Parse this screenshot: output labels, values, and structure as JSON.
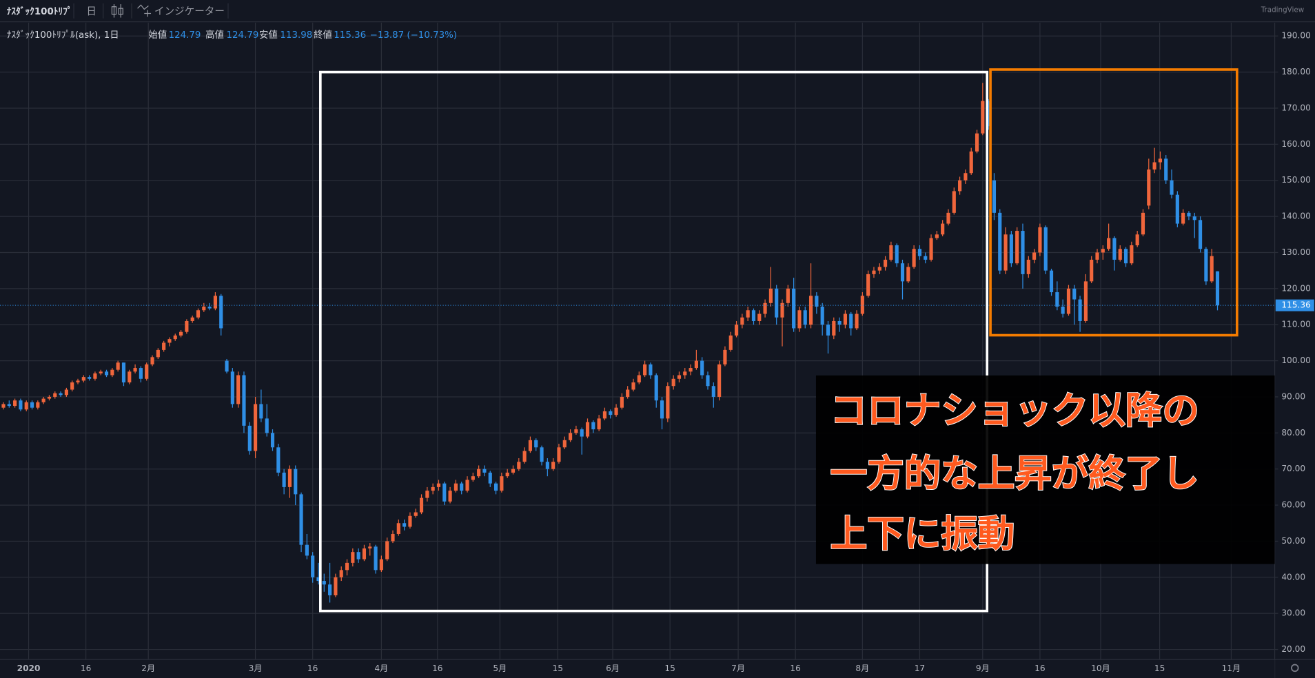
{
  "toolbar": {
    "symbol": "ﾅｽﾀﾞｯｸ100ﾄﾘﾌﾟ",
    "interval": "日",
    "indicators": "インジケーター",
    "brand": "TradingView"
  },
  "chart_data": {
    "type": "candlestick",
    "legend_title": "ﾅｽﾀﾞｯｸ100ﾄﾘﾌﾟﾙ(ask), 1日",
    "legend_labels": [
      "始値",
      "高値",
      "安値",
      "終値"
    ],
    "change_text": "−13.87 (−10.73%)",
    "up_color": "#f0663c",
    "down_color": "#2f8fe6",
    "grid": true,
    "last_price_line": true,
    "xlim": [
      -0.6,
      222
    ],
    "xticks": [
      {
        "value": 4.4,
        "label": "2020"
      },
      {
        "value": 14.4,
        "label": "16"
      },
      {
        "value": 25.3,
        "label": "2月"
      },
      {
        "value": 44,
        "label": "3月"
      },
      {
        "value": 54,
        "label": "16"
      },
      {
        "value": 66,
        "label": "4月"
      },
      {
        "value": 75.8,
        "label": "16"
      },
      {
        "value": 86.7,
        "label": "5月"
      },
      {
        "value": 96.8,
        "label": "15"
      },
      {
        "value": 106.4,
        "label": "6月"
      },
      {
        "value": 116.4,
        "label": "15"
      },
      {
        "value": 128.3,
        "label": "7月"
      },
      {
        "value": 138.3,
        "label": "16"
      },
      {
        "value": 150,
        "label": "8月"
      },
      {
        "value": 160,
        "label": "17"
      },
      {
        "value": 171,
        "label": "9月"
      },
      {
        "value": 181,
        "label": "16"
      },
      {
        "value": 191.6,
        "label": "10月"
      },
      {
        "value": 201.9,
        "label": "15"
      },
      {
        "value": 214.4,
        "label": "11月"
      }
    ],
    "ylim": [
      17.2,
      193.7
    ],
    "yticks": [
      {
        "value": 20,
        "label": "20.00"
      },
      {
        "value": 30,
        "label": "30.00"
      },
      {
        "value": 40,
        "label": "40.00"
      },
      {
        "value": 50,
        "label": "50.00"
      },
      {
        "value": 60,
        "label": "60.00"
      },
      {
        "value": 70,
        "label": "70.00"
      },
      {
        "value": 80,
        "label": "80.00"
      },
      {
        "value": 90,
        "label": "90.00"
      },
      {
        "value": 100,
        "label": "100.00"
      },
      {
        "value": 110,
        "label": "110.00"
      },
      {
        "value": 120,
        "label": "120.00"
      },
      {
        "value": 130,
        "label": "130.00"
      },
      {
        "value": 140,
        "label": "140.00"
      },
      {
        "value": 150,
        "label": "150.00"
      },
      {
        "value": 160,
        "label": "160.00"
      },
      {
        "value": 170,
        "label": "170.00"
      },
      {
        "value": 180,
        "label": "180.00"
      },
      {
        "value": 190,
        "label": "190.00"
      }
    ],
    "ohlc": [
      [
        87,
        88.5,
        86.5,
        88
      ],
      [
        88,
        89,
        87,
        87.5
      ],
      [
        87.5,
        89.5,
        87,
        89
      ],
      [
        89,
        89.5,
        86,
        86.5
      ],
      [
        86.5,
        89,
        86,
        88.5
      ],
      [
        88.5,
        89,
        86.5,
        87
      ],
      [
        87,
        89,
        86.5,
        88.5
      ],
      [
        88.5,
        90,
        88,
        89.5
      ],
      [
        89.5,
        90.5,
        89,
        90
      ],
      [
        90,
        91.5,
        89.5,
        91
      ],
      [
        91,
        91.5,
        90,
        90.5
      ],
      [
        90.5,
        92.5,
        90,
        92
      ],
      [
        92,
        94.5,
        91.5,
        94
      ],
      [
        94,
        95,
        93.5,
        94.5
      ],
      [
        94.5,
        96,
        94,
        95.5
      ],
      [
        95.5,
        96,
        94.5,
        95
      ],
      [
        95,
        97,
        94.5,
        96.5
      ],
      [
        96.5,
        97.5,
        96,
        97
      ],
      [
        97,
        97.5,
        95.5,
        96
      ],
      [
        96,
        98,
        95.5,
        97.5
      ],
      [
        97.5,
        100,
        97,
        99.5
      ],
      [
        99.5,
        99.5,
        93,
        94
      ],
      [
        94,
        97.5,
        93.5,
        97
      ],
      [
        97,
        99,
        96.5,
        98
      ],
      [
        98,
        98.5,
        94,
        95
      ],
      [
        95,
        99.5,
        94.5,
        99
      ],
      [
        99,
        101.5,
        98.5,
        101
      ],
      [
        101,
        103.5,
        100.5,
        103
      ],
      [
        103,
        105.5,
        102.5,
        105
      ],
      [
        105,
        106.5,
        104,
        106
      ],
      [
        106,
        107.5,
        105.5,
        107
      ],
      [
        107,
        108.5,
        106.5,
        108
      ],
      [
        108,
        111.5,
        107.5,
        111
      ],
      [
        111,
        112.5,
        110.5,
        112
      ],
      [
        112,
        114.5,
        111.5,
        114
      ],
      [
        114,
        116,
        113.5,
        115
      ],
      [
        115,
        116,
        114,
        114.5
      ],
      [
        114.5,
        119,
        114,
        118
      ],
      [
        118,
        118.5,
        107,
        109
      ],
      [
        100,
        100.5,
        96.5,
        97
      ],
      [
        97,
        98,
        87,
        88
      ],
      [
        88,
        97,
        87,
        96
      ],
      [
        96,
        97,
        80,
        82
      ],
      [
        82,
        83,
        74,
        75
      ],
      [
        75,
        90,
        73,
        88
      ],
      [
        88,
        92,
        83,
        84
      ],
      [
        84,
        88,
        79,
        80
      ],
      [
        80,
        81,
        75,
        76
      ],
      [
        76,
        77,
        68,
        69
      ],
      [
        69,
        70,
        63,
        65
      ],
      [
        65,
        71,
        62,
        70
      ],
      [
        70,
        71,
        60,
        63
      ],
      [
        63,
        63.5,
        47,
        49
      ],
      [
        49,
        52,
        45,
        46
      ],
      [
        46,
        47,
        38.5,
        40
      ],
      [
        40,
        44,
        38,
        39
      ],
      [
        39,
        41,
        36,
        38
      ],
      [
        38,
        44,
        33,
        35
      ],
      [
        35,
        41,
        34.5,
        40
      ],
      [
        40,
        43,
        39,
        42
      ],
      [
        42,
        45,
        40.5,
        44
      ],
      [
        44,
        48,
        43,
        47
      ],
      [
        47,
        48,
        44,
        45
      ],
      [
        45,
        49,
        44.5,
        48
      ],
      [
        48,
        49.5,
        46,
        48.5
      ],
      [
        48.5,
        49,
        41,
        42
      ],
      [
        42,
        46,
        41.5,
        45
      ],
      [
        45,
        51,
        44.5,
        50
      ],
      [
        50,
        53,
        49.5,
        52
      ],
      [
        52,
        56,
        51.5,
        55
      ],
      [
        55,
        56,
        53,
        54
      ],
      [
        54,
        58,
        53.5,
        57
      ],
      [
        57,
        59,
        56.5,
        58
      ],
      [
        58,
        63,
        57.5,
        62
      ],
      [
        62,
        65,
        61,
        64
      ],
      [
        64,
        66,
        63,
        65
      ],
      [
        65,
        67,
        64,
        66
      ],
      [
        66,
        66.5,
        60,
        61
      ],
      [
        61,
        65,
        60.5,
        64
      ],
      [
        64,
        67,
        63.5,
        66
      ],
      [
        66,
        66.5,
        63,
        64
      ],
      [
        64,
        68,
        63.5,
        67
      ],
      [
        67,
        69,
        66.5,
        68
      ],
      [
        68,
        71,
        67.5,
        70
      ],
      [
        70,
        71,
        68,
        69
      ],
      [
        69,
        69.5,
        65,
        66
      ],
      [
        66,
        66.5,
        63,
        64
      ],
      [
        64,
        69,
        63.5,
        68
      ],
      [
        68,
        70,
        67.5,
        69
      ],
      [
        69,
        71,
        68.5,
        70
      ],
      [
        70,
        73,
        69.5,
        72
      ],
      [
        72,
        76,
        71.5,
        75
      ],
      [
        75,
        79,
        74.5,
        78
      ],
      [
        78,
        78.5,
        75,
        76
      ],
      [
        76,
        76.5,
        71,
        72
      ],
      [
        72,
        73,
        68,
        70
      ],
      [
        70,
        73,
        69.5,
        72
      ],
      [
        72,
        77,
        71.5,
        76
      ],
      [
        76,
        79,
        75.5,
        78
      ],
      [
        78,
        81,
        77.5,
        80
      ],
      [
        80,
        82,
        79.5,
        81
      ],
      [
        81,
        81.5,
        74,
        79
      ],
      [
        79,
        84,
        78.5,
        83
      ],
      [
        83,
        83.5,
        80,
        81
      ],
      [
        81,
        85,
        80.5,
        84
      ],
      [
        84,
        87,
        83.5,
        86
      ],
      [
        86,
        86.5,
        84,
        85
      ],
      [
        85,
        88,
        84.5,
        87
      ],
      [
        87,
        91,
        86.5,
        90
      ],
      [
        90,
        93,
        89.5,
        92
      ],
      [
        92,
        95,
        91.5,
        94
      ],
      [
        94,
        97,
        93.5,
        96
      ],
      [
        96,
        100,
        95.5,
        99
      ],
      [
        99,
        99.5,
        95,
        96
      ],
      [
        96,
        96.5,
        87,
        89
      ],
      [
        89,
        90,
        81,
        84
      ],
      [
        84,
        94,
        83,
        93
      ],
      [
        93,
        96,
        92,
        95
      ],
      [
        95,
        97,
        94,
        96
      ],
      [
        96,
        98,
        95,
        97
      ],
      [
        97,
        99,
        96,
        98
      ],
      [
        98,
        103,
        97.5,
        100
      ],
      [
        100,
        101,
        95,
        96
      ],
      [
        96,
        97,
        92,
        93
      ],
      [
        93,
        94,
        87,
        90
      ],
      [
        90,
        100,
        89,
        99
      ],
      [
        99,
        104,
        98.5,
        103
      ],
      [
        103,
        108,
        102.5,
        107
      ],
      [
        107,
        111,
        106.5,
        110
      ],
      [
        110,
        113,
        109,
        112
      ],
      [
        112,
        115,
        111,
        114
      ],
      [
        114,
        114.5,
        110,
        111
      ],
      [
        111,
        114,
        110,
        113
      ],
      [
        113,
        117,
        112,
        116
      ],
      [
        116,
        126,
        115,
        120
      ],
      [
        120,
        121,
        110,
        112
      ],
      [
        112,
        117,
        104,
        116
      ],
      [
        116,
        121,
        115,
        120
      ],
      [
        120,
        123,
        108,
        109
      ],
      [
        109,
        115,
        108,
        114
      ],
      [
        114,
        115,
        109,
        110
      ],
      [
        110,
        127,
        109,
        118
      ],
      [
        118,
        119,
        113,
        115
      ],
      [
        115,
        116,
        107,
        110
      ],
      [
        110,
        111,
        102,
        107
      ],
      [
        107,
        112,
        106,
        111
      ],
      [
        111,
        112,
        108,
        110
      ],
      [
        110,
        114,
        109,
        113
      ],
      [
        113,
        113.5,
        107,
        109
      ],
      [
        109,
        114,
        108.5,
        113
      ],
      [
        113,
        119,
        112.5,
        118
      ],
      [
        118,
        125,
        117.5,
        124
      ],
      [
        124,
        126,
        123,
        125
      ],
      [
        125,
        127,
        124,
        126
      ],
      [
        126,
        129,
        125,
        128
      ],
      [
        128,
        133,
        127.5,
        132
      ],
      [
        132,
        132.5,
        126,
        127
      ],
      [
        127,
        128,
        117,
        122
      ],
      [
        122,
        127,
        121.5,
        126
      ],
      [
        126,
        132,
        125.5,
        131
      ],
      [
        131,
        132,
        128,
        129
      ],
      [
        129,
        130,
        127,
        128
      ],
      [
        128,
        135,
        127.5,
        134
      ],
      [
        134,
        136,
        133.5,
        135
      ],
      [
        135,
        139,
        134.5,
        138
      ],
      [
        138,
        142,
        137.5,
        141
      ],
      [
        141,
        148,
        140.5,
        147
      ],
      [
        147,
        151,
        146,
        150
      ],
      [
        150,
        153,
        149,
        152
      ],
      [
        152,
        159,
        151.5,
        158
      ],
      [
        158,
        164,
        157.5,
        163
      ],
      [
        163,
        177,
        162.5,
        172
      ],
      [
        172,
        172.5,
        164,
        165
      ],
      [
        150,
        152,
        139,
        141
      ],
      [
        141,
        142,
        124,
        125
      ],
      [
        125,
        137,
        124,
        135
      ],
      [
        135,
        136,
        126,
        127
      ],
      [
        127,
        137,
        126.5,
        136
      ],
      [
        136,
        138,
        120,
        124
      ],
      [
        124,
        129,
        123,
        128
      ],
      [
        128,
        131,
        127,
        130
      ],
      [
        130,
        138,
        129,
        137
      ],
      [
        137,
        137.5,
        124,
        125
      ],
      [
        125,
        125.5,
        118,
        119
      ],
      [
        119,
        122,
        114,
        115
      ],
      [
        115,
        117,
        112,
        113
      ],
      [
        113,
        121,
        112.5,
        120
      ],
      [
        120,
        121,
        110,
        117
      ],
      [
        117,
        118,
        108,
        111
      ],
      [
        111,
        124,
        110.5,
        122
      ],
      [
        122,
        129,
        121.5,
        128
      ],
      [
        128,
        131,
        127,
        130
      ],
      [
        130,
        132,
        128,
        131
      ],
      [
        131,
        138,
        130.5,
        134
      ],
      [
        134,
        134.5,
        125,
        128
      ],
      [
        128,
        132,
        127.5,
        131
      ],
      [
        131,
        131.5,
        126,
        127
      ],
      [
        127,
        133,
        126.5,
        132
      ],
      [
        132,
        136,
        131.5,
        135
      ],
      [
        135,
        142,
        134.5,
        141
      ],
      [
        143,
        156,
        142,
        153
      ],
      [
        153,
        159,
        152,
        155
      ],
      [
        155,
        158,
        153,
        156
      ],
      [
        156,
        157,
        149,
        150
      ],
      [
        150,
        153,
        145,
        146
      ],
      [
        146,
        147,
        137,
        138
      ],
      [
        138,
        142,
        137.5,
        141
      ],
      [
        141,
        141.5,
        139,
        140
      ],
      [
        140,
        141,
        134,
        139
      ],
      [
        139,
        140,
        130,
        131
      ],
      [
        131,
        131.5,
        121,
        122
      ],
      [
        122,
        131,
        121.5,
        129
      ],
      [
        124.79,
        124.79,
        113.98,
        115.36
      ]
    ]
  },
  "annotation": {
    "lines": [
      "コロナショック以降の",
      "一方的な上昇が終了し",
      "上下に振動"
    ]
  }
}
